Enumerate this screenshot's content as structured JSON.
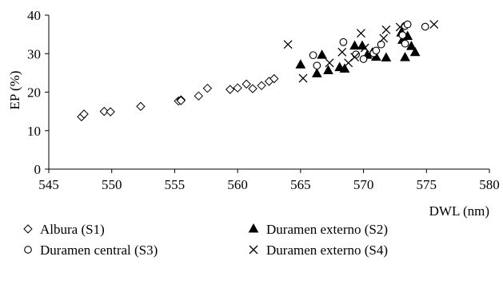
{
  "chart_data": {
    "type": "scatter",
    "xlabel": "DWL (nm)",
    "ylabel": "EP (%)",
    "xlim": [
      545,
      580
    ],
    "ylim": [
      0,
      40
    ],
    "x_ticks": [
      545,
      550,
      555,
      560,
      565,
      570,
      575,
      580
    ],
    "y_ticks": [
      0,
      10,
      20,
      30,
      40
    ],
    "grid": false,
    "legend_position": "bottom",
    "series": [
      {
        "name": "Albura (S1)",
        "marker": "diamond-open",
        "points": [
          [
            547.6,
            13.6
          ],
          [
            547.8,
            14.3
          ],
          [
            549.4,
            15.0
          ],
          [
            549.9,
            14.9
          ],
          [
            552.3,
            16.3
          ],
          [
            555.3,
            17.7
          ],
          [
            555.5,
            18.0
          ],
          [
            555.5,
            17.8
          ],
          [
            556.9,
            19.0
          ],
          [
            557.6,
            21.0
          ],
          [
            559.4,
            20.7
          ],
          [
            560.0,
            21.1
          ],
          [
            560.7,
            22.1
          ],
          [
            561.2,
            20.9
          ],
          [
            561.9,
            21.7
          ],
          [
            562.5,
            22.8
          ],
          [
            562.9,
            23.5
          ]
        ]
      },
      {
        "name": "Duramen externo (S2)",
        "marker": "triangle-filled",
        "points": [
          [
            565.0,
            27.1
          ],
          [
            566.3,
            24.8
          ],
          [
            566.7,
            29.6
          ],
          [
            567.2,
            25.6
          ],
          [
            568.1,
            26.4
          ],
          [
            568.5,
            26.0
          ],
          [
            569.3,
            32.0
          ],
          [
            569.9,
            32.0
          ],
          [
            570.3,
            29.6
          ],
          [
            570.7,
            30.2
          ],
          [
            571.0,
            29.1
          ],
          [
            571.8,
            28.9
          ],
          [
            573.0,
            35.4
          ],
          [
            573.1,
            33.5
          ],
          [
            573.3,
            29.0
          ],
          [
            573.5,
            34.5
          ],
          [
            573.8,
            31.9
          ],
          [
            574.1,
            30.3
          ]
        ]
      },
      {
        "name": "Duramen central (S3)",
        "marker": "circle-open",
        "points": [
          [
            566.0,
            29.6
          ],
          [
            566.3,
            26.9
          ],
          [
            568.4,
            33.0
          ],
          [
            569.4,
            29.8
          ],
          [
            570.0,
            28.6
          ],
          [
            570.8,
            30.1
          ],
          [
            571.0,
            30.8
          ],
          [
            571.4,
            32.4
          ],
          [
            573.1,
            34.8
          ],
          [
            573.3,
            32.6
          ],
          [
            573.3,
            37.2
          ],
          [
            573.5,
            37.6
          ],
          [
            574.9,
            37.0
          ]
        ]
      },
      {
        "name": "Duramen externo (S4)",
        "marker": "x",
        "points": [
          [
            564.0,
            32.4
          ],
          [
            565.2,
            23.6
          ],
          [
            567.3,
            27.6
          ],
          [
            568.3,
            30.4
          ],
          [
            568.8,
            27.6
          ],
          [
            569.3,
            29.1
          ],
          [
            569.8,
            35.3
          ],
          [
            570.1,
            31.5
          ],
          [
            571.6,
            34.0
          ],
          [
            571.8,
            36.2
          ],
          [
            572.9,
            36.9
          ],
          [
            575.6,
            37.6
          ]
        ]
      }
    ]
  }
}
